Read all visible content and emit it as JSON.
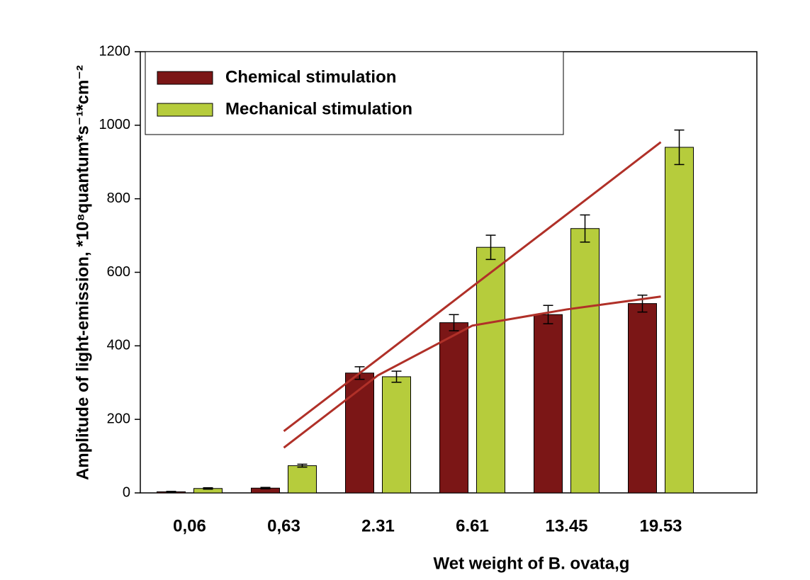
{
  "chart_data": {
    "type": "bar",
    "x_label": "Wet weight of B. ovata,g",
    "y_label": "Amplitude of light-emission, *10⁸quantum*s⁻¹*cm⁻²",
    "categories": [
      "0,06",
      "0,63",
      "2.31",
      "6.61",
      "13.45",
      "19.53"
    ],
    "series": [
      {
        "name": "Chemical stimulation",
        "color": "#7b1616",
        "values": [
          3,
          13,
          326,
          463,
          485,
          515
        ],
        "errors": [
          1,
          2,
          17,
          22,
          25,
          23
        ]
      },
      {
        "name": "Mechanical stimulation",
        "color": "#b6cc3c",
        "values": [
          12,
          74,
          316,
          668,
          719,
          940
        ],
        "errors": [
          2,
          4,
          15,
          33,
          37,
          47
        ]
      }
    ],
    "trend_lines": [
      {
        "color": "#b03028",
        "values": [
          null,
          168,
          364,
          561,
          757,
          954
        ]
      },
      {
        "color": "#b03028",
        "values": [
          null,
          123,
          320,
          455,
          499,
          534
        ]
      }
    ],
    "ylim": [
      0,
      1200
    ],
    "yticks": [
      0,
      200,
      400,
      600,
      800,
      1000,
      1200
    ]
  }
}
